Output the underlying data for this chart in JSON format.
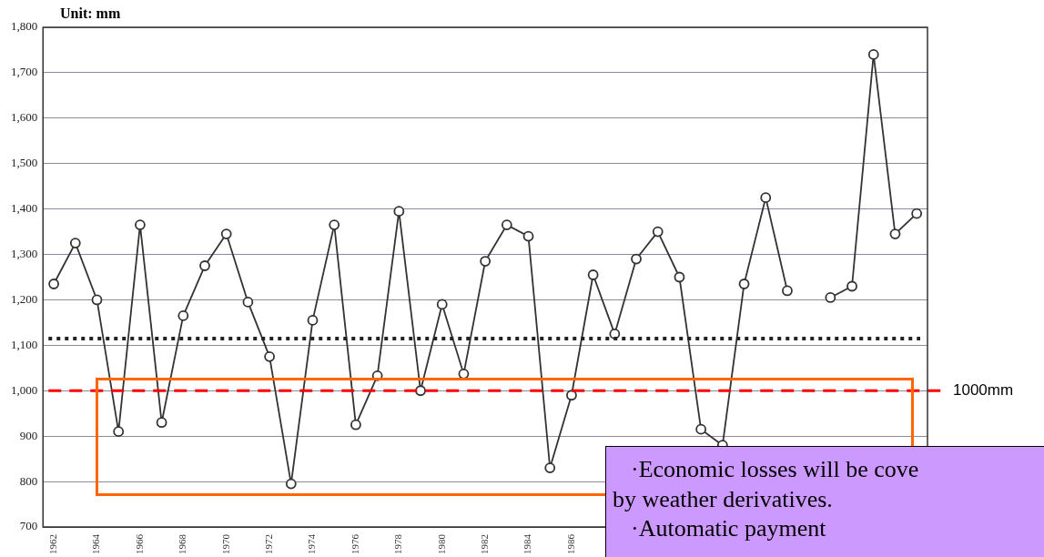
{
  "chart_data": {
    "type": "line",
    "ylabel": "Unit: mm",
    "categories": [
      "1962",
      null,
      "1964",
      null,
      "1966",
      null,
      "1968",
      null,
      "1970",
      null,
      "1972",
      null,
      "1974",
      null,
      "1976",
      null,
      "1978",
      null,
      "1980",
      null,
      "1982",
      null,
      "1984",
      null,
      "1986",
      null,
      null,
      null,
      null,
      null,
      null,
      null,
      null,
      null,
      null,
      null,
      null,
      null,
      null,
      null,
      null
    ],
    "series": [
      {
        "color": "#333333",
        "values": [
          1235,
          1325,
          1200,
          910,
          1365,
          930,
          1165,
          1275,
          1345,
          1195,
          1075,
          795,
          1155,
          1365,
          925,
          1033,
          1395,
          1000,
          1190,
          1037,
          1285,
          1365,
          1340,
          830,
          990,
          1255,
          1125,
          1290,
          1350,
          1250,
          915,
          880,
          1235,
          1425,
          1220,
          null,
          1205,
          1230,
          1740,
          1345,
          1390
        ]
      }
    ],
    "ylim": [
      700,
      1800
    ],
    "yticks": [
      {
        "value": 700,
        "label": "700"
      },
      {
        "value": 800,
        "label": "800"
      },
      {
        "value": 900,
        "label": "900"
      },
      {
        "value": 1000,
        "label": "1,000"
      },
      {
        "value": 1100,
        "label": "1,100"
      },
      {
        "value": 1200,
        "label": "1,200"
      },
      {
        "value": 1300,
        "label": "1,300"
      },
      {
        "value": 1400,
        "label": "1,400"
      },
      {
        "value": 1500,
        "label": "1,500"
      },
      {
        "value": 1600,
        "label": "1,600"
      },
      {
        "value": 1700,
        "label": "1,700"
      },
      {
        "value": 1800,
        "label": "1,800"
      }
    ],
    "grid": "y",
    "marker": "circle",
    "line_style": "solid",
    "ref_lines": [
      {
        "axis": "y",
        "value": 1115,
        "color": "#222222",
        "line_style": "dotted"
      },
      {
        "axis": "y",
        "value": 1000,
        "label": "1000mm",
        "color": "#ff0000",
        "line_style": "dashed"
      }
    ],
    "annotations": [
      "·Economic losses will be cove",
      "by weather derivatives.",
      "·Automatic payment"
    ]
  }
}
